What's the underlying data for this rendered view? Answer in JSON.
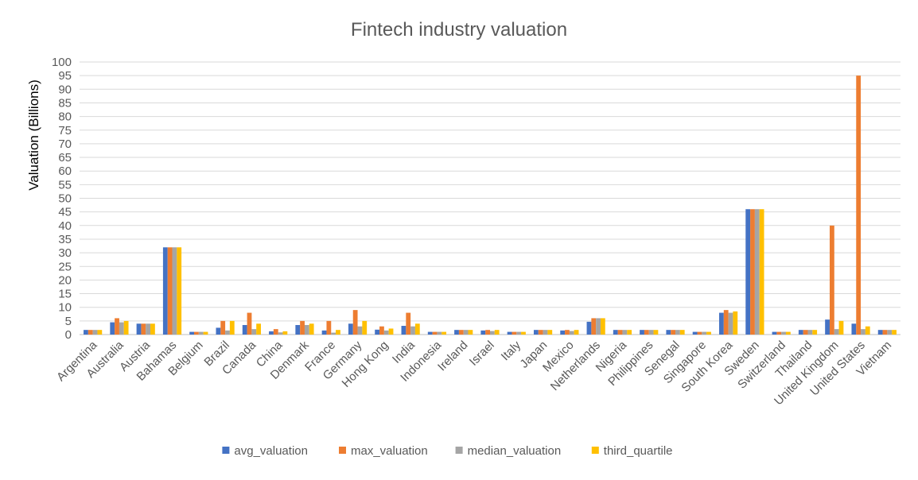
{
  "chart_data": {
    "type": "bar",
    "title": "Fintech industry  valuation",
    "xlabel": "",
    "ylabel": "Valuation  (Billions)",
    "ylim": [
      0,
      100
    ],
    "ytick_step": 5,
    "grid": true,
    "legend_position": "bottom",
    "categories": [
      "Argentina",
      "Australia",
      "Austria",
      "Bahamas",
      "Belgium",
      "Brazil",
      "Canada",
      "China",
      "Denmark",
      "France",
      "Germany",
      "Hong Kong",
      "India",
      "Indonesia",
      "Ireland",
      "Israel",
      "Italy",
      "Japan",
      "Mexico",
      "Netherlands",
      "Nigeria",
      "Philippines",
      "Senegal",
      "Singapore",
      "South Korea",
      "Sweden",
      "Switzerland",
      "Thailand",
      "United Kingdom",
      "United States",
      "Vietnam"
    ],
    "series": [
      {
        "name": "avg_valuation",
        "color": "#4472C4",
        "values": [
          1.7,
          4.5,
          4,
          32,
          1,
          2.5,
          3.5,
          1.2,
          3.5,
          1.5,
          4,
          1.8,
          3.2,
          1,
          1.7,
          1.5,
          1,
          1.7,
          1.5,
          4.7,
          1.7,
          1.7,
          1.7,
          1,
          8,
          46,
          1,
          1.7,
          5.5,
          4,
          1.7
        ]
      },
      {
        "name": "max_valuation",
        "color": "#ED7D31",
        "values": [
          1.7,
          6,
          4,
          32,
          1,
          5,
          8,
          2,
          5,
          5,
          9,
          3,
          8,
          1,
          1.7,
          1.7,
          1,
          1.7,
          1.7,
          6,
          1.7,
          1.7,
          1.7,
          1,
          9,
          46,
          1,
          1.7,
          40,
          95,
          1.7
        ]
      },
      {
        "name": "median_valuation",
        "color": "#A5A5A5",
        "values": [
          1.7,
          4.5,
          4,
          32,
          1,
          1.5,
          2,
          0.8,
          3.5,
          0.7,
          3,
          1.5,
          3,
          1,
          1.7,
          1.3,
          1,
          1.7,
          1.3,
          6,
          1.7,
          1.7,
          1.7,
          1,
          8,
          46,
          1,
          1.7,
          2,
          2,
          1.7
        ]
      },
      {
        "name": "third_quartile",
        "color": "#FFC000",
        "values": [
          1.7,
          5,
          4,
          32,
          1,
          5,
          4,
          1.2,
          4,
          1.7,
          5,
          2.2,
          4,
          1,
          1.7,
          1.7,
          1,
          1.7,
          1.7,
          6,
          1.7,
          1.7,
          1.7,
          1,
          8.5,
          46,
          1,
          1.7,
          5,
          3,
          1.7
        ]
      }
    ]
  }
}
